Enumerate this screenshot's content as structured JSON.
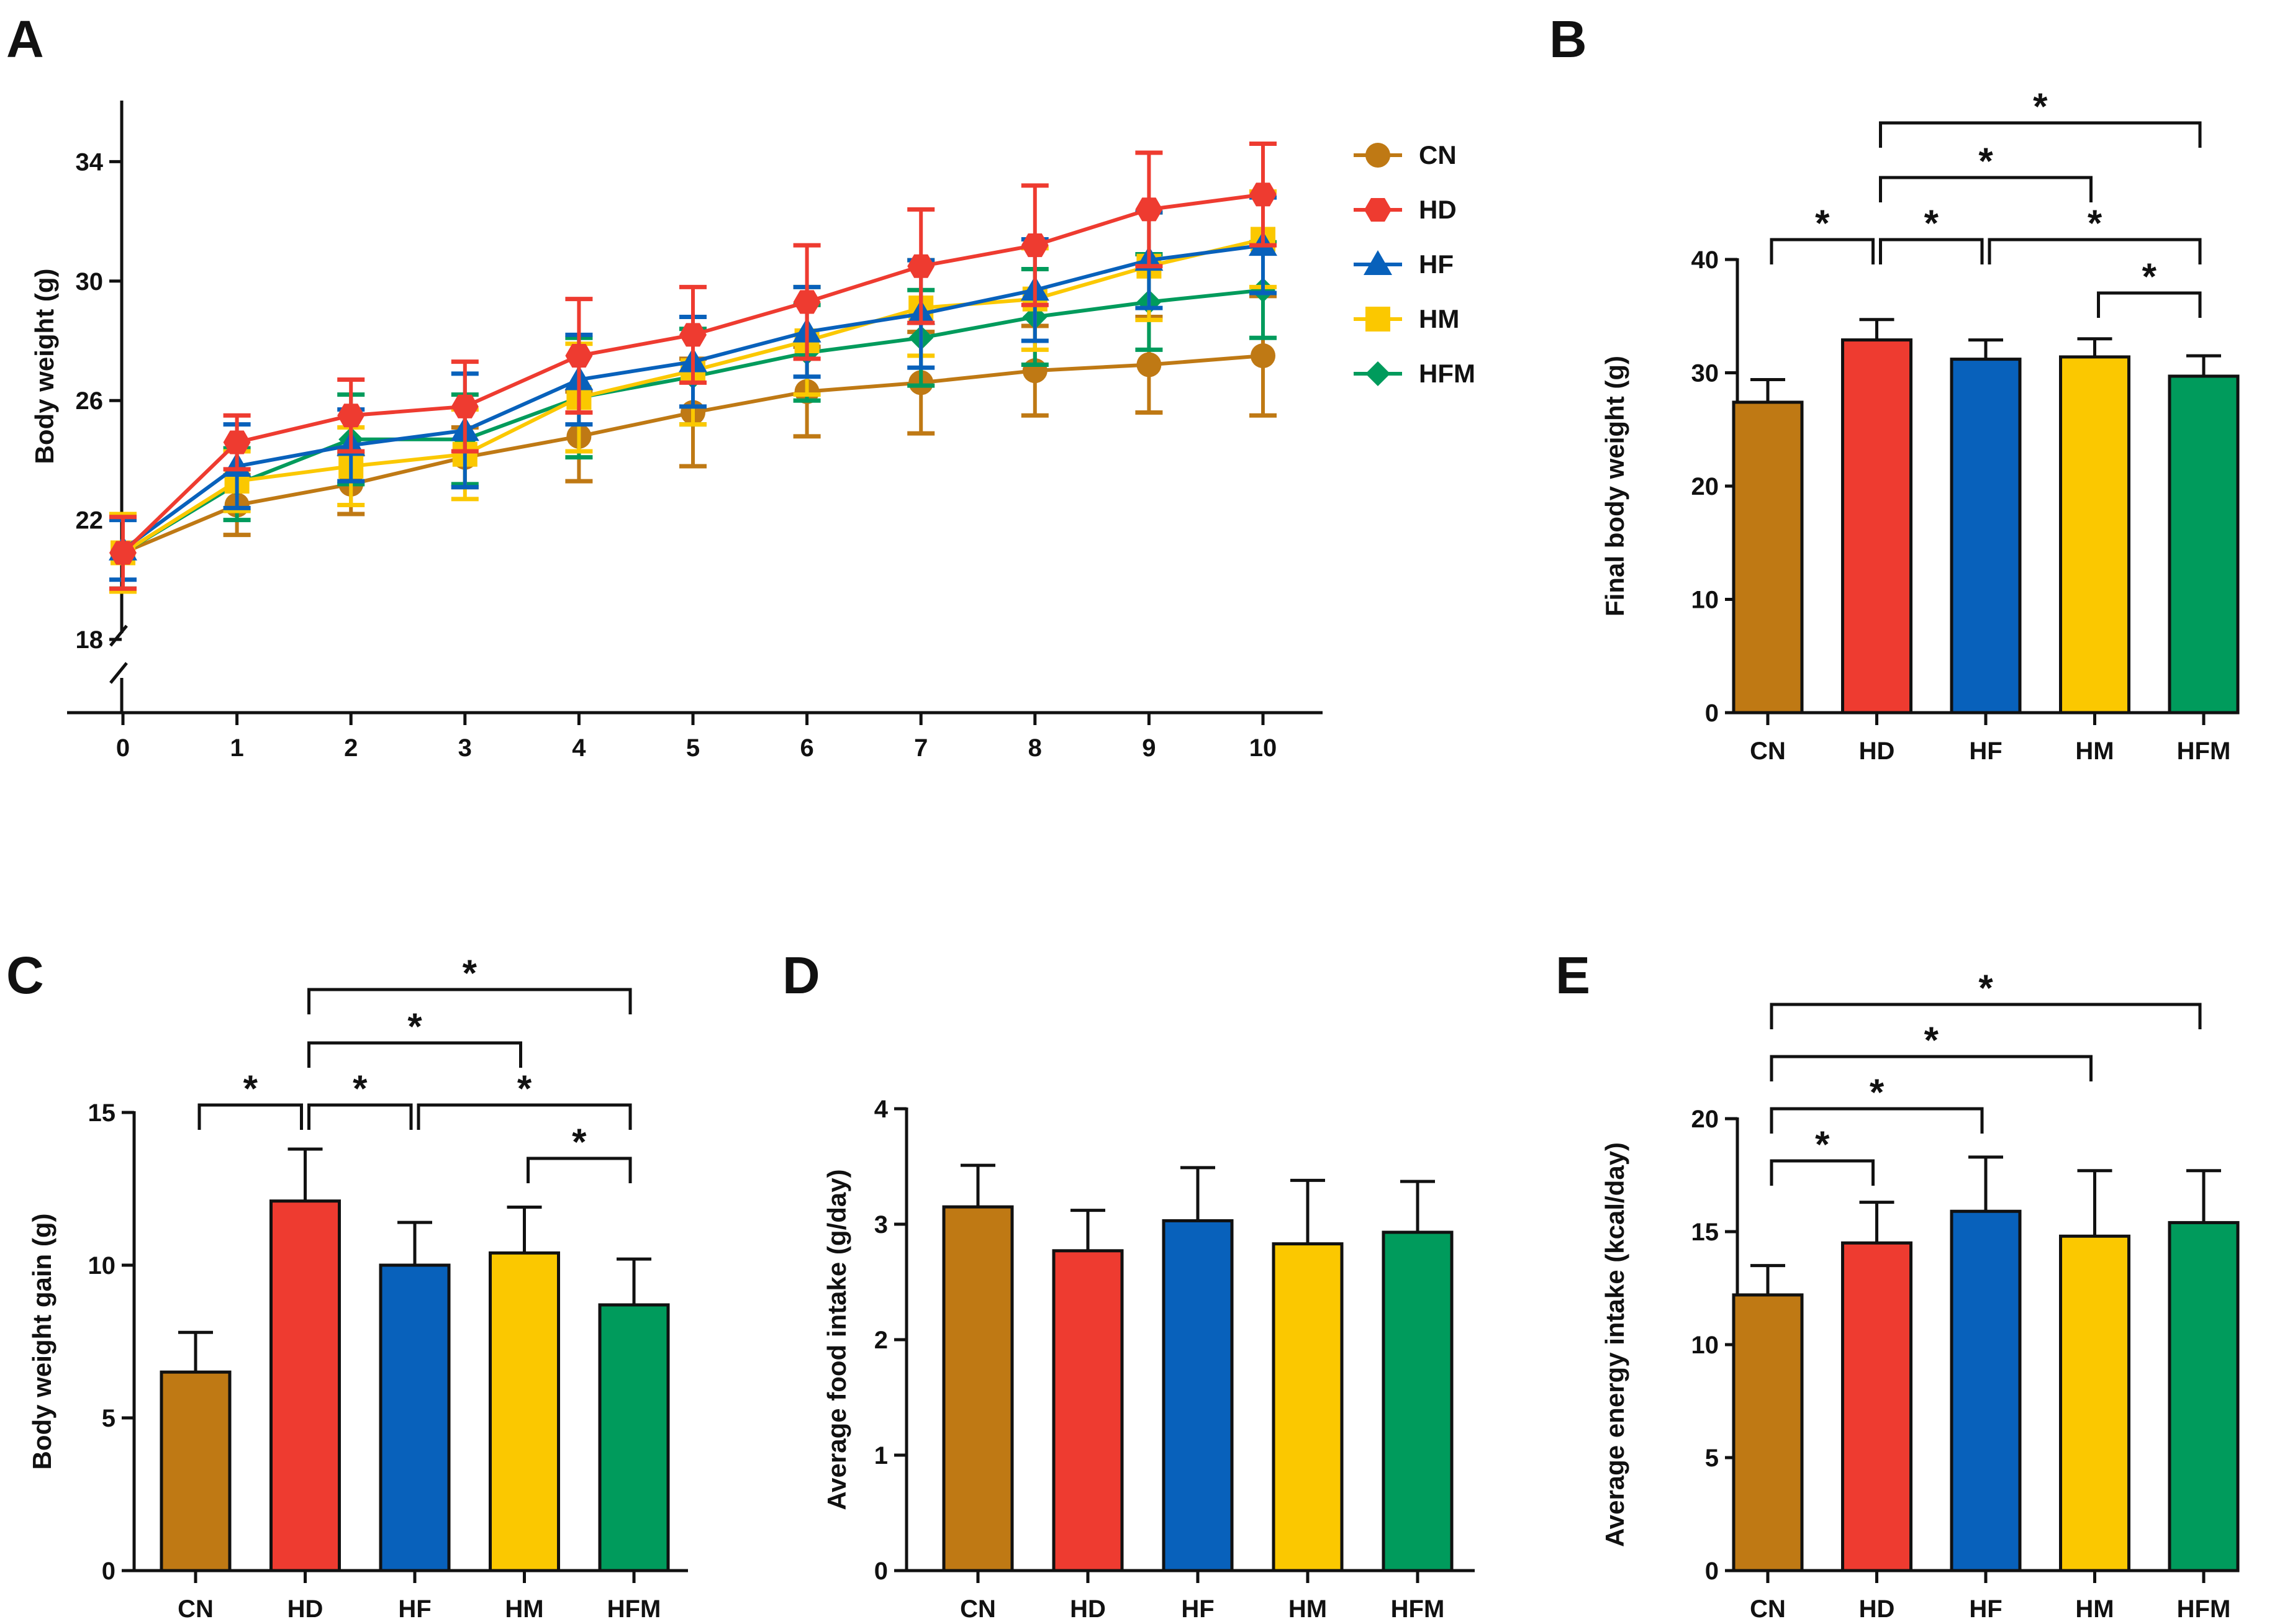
{
  "colors": {
    "CN": "#BF7914",
    "HD": "#EE3B30",
    "HF": "#0861BB",
    "HM": "#FBC800",
    "HFM": "#009B5C",
    "axis": "#111111"
  },
  "panel_labels": {
    "A": "A",
    "B": "B",
    "C": "C",
    "D": "D",
    "E": "E"
  },
  "chart_data": [
    {
      "id": "A",
      "type": "line",
      "xlabel": "",
      "ylabel": "Body weight (g)",
      "x": [
        0,
        1,
        2,
        3,
        4,
        5,
        6,
        7,
        8,
        9,
        10
      ],
      "ylim": [
        18,
        36
      ],
      "yticks": [
        18,
        22,
        26,
        30,
        34
      ],
      "axis_break": true,
      "legend_position": "top-right",
      "series": [
        {
          "name": "CN",
          "marker": "circle",
          "values": [
            20.9,
            22.5,
            23.2,
            24.1,
            24.8,
            25.6,
            26.3,
            26.6,
            27.0,
            27.2,
            27.5
          ],
          "errors": [
            1.2,
            1.0,
            1.0,
            1.0,
            1.5,
            1.8,
            1.5,
            1.7,
            1.5,
            1.6,
            2.0
          ]
        },
        {
          "name": "HD",
          "marker": "hexagon",
          "values": [
            20.9,
            24.6,
            25.5,
            25.8,
            27.5,
            28.2,
            29.3,
            30.5,
            31.2,
            32.4,
            32.9
          ],
          "errors": [
            1.2,
            0.9,
            1.2,
            1.5,
            1.9,
            1.6,
            1.9,
            1.9,
            2.0,
            1.9,
            1.7
          ]
        },
        {
          "name": "HF",
          "marker": "triangle",
          "values": [
            21.0,
            23.8,
            24.5,
            25.0,
            26.7,
            27.3,
            28.3,
            28.9,
            29.7,
            30.7,
            31.2
          ],
          "errors": [
            1.0,
            1.4,
            1.2,
            1.9,
            1.5,
            1.5,
            1.5,
            1.8,
            1.7,
            1.6,
            1.6
          ]
        },
        {
          "name": "HM",
          "marker": "square",
          "values": [
            20.9,
            23.3,
            23.8,
            24.2,
            26.1,
            27.0,
            28.0,
            29.1,
            29.4,
            30.5,
            31.4
          ],
          "errors": [
            1.3,
            1.0,
            1.3,
            1.5,
            1.8,
            1.8,
            1.8,
            1.6,
            1.7,
            1.8,
            1.6
          ]
        },
        {
          "name": "HFM",
          "marker": "diamond",
          "values": [
            20.9,
            23.2,
            24.7,
            24.7,
            26.1,
            26.8,
            27.6,
            28.1,
            28.8,
            29.3,
            29.7
          ],
          "errors": [
            1.2,
            1.2,
            1.5,
            1.5,
            2.0,
            1.6,
            1.6,
            1.6,
            1.6,
            1.6,
            1.6
          ]
        }
      ]
    },
    {
      "id": "B",
      "type": "bar",
      "ylabel": "Final body weight (g)",
      "categories": [
        "CN",
        "HD",
        "HF",
        "HM",
        "HFM"
      ],
      "values": [
        27.4,
        32.9,
        31.2,
        31.4,
        29.7
      ],
      "errors": [
        2.0,
        1.8,
        1.7,
        1.6,
        1.8
      ],
      "ylim": [
        0,
        40
      ],
      "yticks": [
        0,
        10,
        20,
        30,
        40
      ],
      "significance": [
        {
          "from": "CN",
          "to": "HD",
          "label": "*"
        },
        {
          "from": "HD",
          "to": "HF",
          "label": "*"
        },
        {
          "from": "HF",
          "to": "HFM",
          "label": "*"
        },
        {
          "from": "HM",
          "to": "HFM",
          "label": "*"
        },
        {
          "from": "HD",
          "to": "HM",
          "label": "*"
        },
        {
          "from": "HD",
          "to": "HFM",
          "label": "*"
        }
      ]
    },
    {
      "id": "C",
      "type": "bar",
      "ylabel": "Body weight gain (g)",
      "categories": [
        "CN",
        "HD",
        "HF",
        "HM",
        "HFM"
      ],
      "values": [
        6.5,
        12.1,
        10.0,
        10.4,
        8.7
      ],
      "errors": [
        1.3,
        1.7,
        1.4,
        1.5,
        1.5
      ],
      "ylim": [
        0,
        15
      ],
      "yticks": [
        0,
        5,
        10,
        15
      ],
      "significance": [
        {
          "from": "CN",
          "to": "HD",
          "label": "*"
        },
        {
          "from": "HD",
          "to": "HF",
          "label": "*"
        },
        {
          "from": "HF",
          "to": "HFM",
          "label": "*"
        },
        {
          "from": "HM",
          "to": "HFM",
          "label": "*"
        },
        {
          "from": "HD",
          "to": "HM",
          "label": "*"
        },
        {
          "from": "HD",
          "to": "HFM",
          "label": "*"
        }
      ]
    },
    {
      "id": "D",
      "type": "bar",
      "ylabel": "Average food intake (g/day)",
      "categories": [
        "CN",
        "HD",
        "HF",
        "HM",
        "HFM"
      ],
      "values": [
        3.15,
        2.77,
        3.03,
        2.83,
        2.93
      ],
      "errors": [
        0.36,
        0.35,
        0.46,
        0.55,
        0.44
      ],
      "ylim": [
        0,
        4
      ],
      "yticks": [
        0,
        1,
        2,
        3,
        4
      ],
      "significance": []
    },
    {
      "id": "E",
      "type": "bar",
      "ylabel": "Average energy intake (kcal/day)",
      "categories": [
        "CN",
        "HD",
        "HF",
        "HM",
        "HFM"
      ],
      "values": [
        12.2,
        14.5,
        15.9,
        14.8,
        15.4
      ],
      "errors": [
        1.3,
        1.8,
        2.4,
        2.9,
        2.3
      ],
      "ylim": [
        0,
        20
      ],
      "yticks": [
        0,
        5,
        10,
        15,
        20
      ],
      "significance": [
        {
          "from": "CN",
          "to": "HD",
          "label": "*"
        },
        {
          "from": "CN",
          "to": "HF",
          "label": "*"
        },
        {
          "from": "CN",
          "to": "HM",
          "label": "*"
        },
        {
          "from": "CN",
          "to": "HFM",
          "label": "*"
        }
      ]
    }
  ]
}
